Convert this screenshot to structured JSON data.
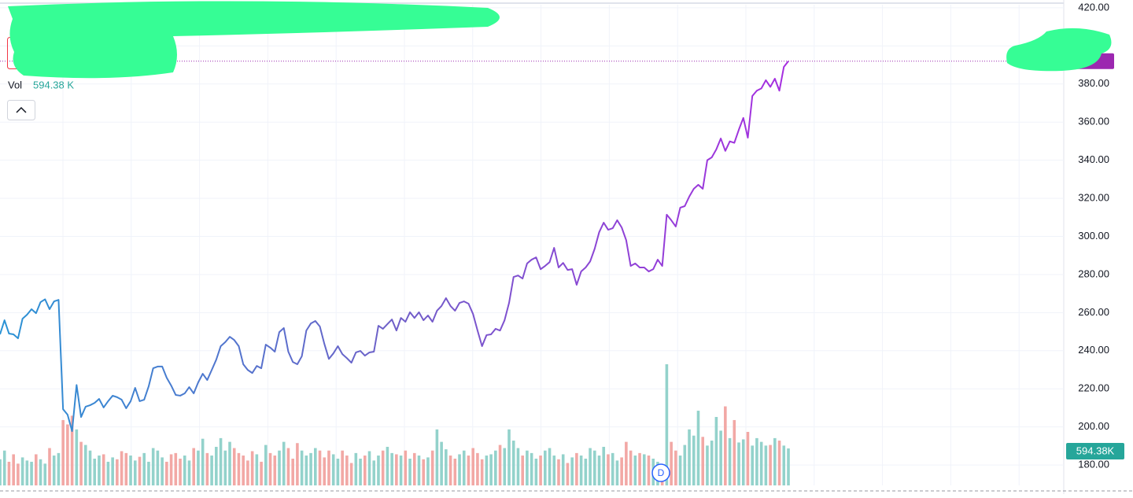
{
  "chart_data": {
    "type": "line",
    "ylim": [
      169.3,
      424.1
    ],
    "yticks": [
      {
        "value": 180,
        "label": "180.00"
      },
      {
        "value": 200,
        "label": "200.00"
      },
      {
        "value": 220,
        "label": "220.00"
      },
      {
        "value": 240,
        "label": "240.00"
      },
      {
        "value": 260,
        "label": "260.00"
      },
      {
        "value": 280,
        "label": "280.00"
      },
      {
        "value": 300,
        "label": "300.00"
      },
      {
        "value": 320,
        "label": "320.00"
      },
      {
        "value": 340,
        "label": "340.00"
      },
      {
        "value": 360,
        "label": "360.00"
      },
      {
        "value": 380,
        "label": "380.00"
      },
      {
        "value": 400,
        "label": "400.00"
      },
      {
        "value": 420,
        "label": "420.00"
      }
    ],
    "grid": true,
    "line_colors": [
      "#2a93d5",
      "#6f5fc8",
      "#a62ee0"
    ],
    "last_price_color": "#9c27b0",
    "values": [
      248.6,
      256,
      249,
      248.6,
      246.5,
      256.8,
      258.9,
      261.8,
      259.7,
      265.5,
      267,
      261.8,
      265.9,
      266.7,
      209.3,
      206.4,
      197.8,
      222,
      205.2,
      210.6,
      211.4,
      212.6,
      214.7,
      210.2,
      213.5,
      216.4,
      215.6,
      214.3,
      209.8,
      213.5,
      220.5,
      213.5,
      214.3,
      221.3,
      230.8,
      231.7,
      231.7,
      225.8,
      221.7,
      216.8,
      216.4,
      217.6,
      220.9,
      217.6,
      223.4,
      227.9,
      224.6,
      229.9,
      235.3,
      242.4,
      244.5,
      247.3,
      245.6,
      242.4,
      232.9,
      229.9,
      228.3,
      232,
      230.8,
      243.2,
      241.6,
      239.5,
      249.8,
      251.9,
      239.5,
      234.1,
      232.9,
      237.1,
      250.6,
      254.3,
      255.6,
      252.7,
      243.6,
      235.7,
      238.6,
      242.4,
      238.2,
      236.1,
      233.7,
      239.1,
      239.9,
      237.4,
      239.1,
      239.5,
      253.1,
      251.5,
      254,
      256.4,
      250.6,
      257.2,
      255.2,
      260.2,
      257.2,
      260.2,
      256,
      258.5,
      255.2,
      261,
      263.5,
      267.6,
      263.5,
      261,
      265.1,
      265.9,
      264.7,
      259.3,
      250.6,
      242.4,
      248.2,
      248.6,
      251.5,
      250.6,
      256,
      265.1,
      278.7,
      279.5,
      277.9,
      285.8,
      287.8,
      289,
      282.8,
      284.5,
      286.5,
      294,
      283.7,
      286.1,
      282.4,
      282.8,
      274.6,
      281.6,
      283.7,
      286.9,
      293.5,
      302.2,
      307.2,
      303.5,
      304.3,
      308.5,
      304.7,
      298,
      284.5,
      285.8,
      283.7,
      283.7,
      281.6,
      282.8,
      287.8,
      284.5,
      311.4,
      308.5,
      305.2,
      315.1,
      315.9,
      320.9,
      325,
      327.1,
      325,
      340,
      341.5,
      345.7,
      351.4,
      344.9,
      349.9,
      349.1,
      356,
      362.2,
      351.8,
      373.7,
      376.5,
      377.7,
      382,
      378.5,
      382.8,
      376.5,
      389,
      392
    ],
    "volume": {
      "label": "Vol",
      "ylim": [
        0,
        7800
      ],
      "up_color": "#93d2cb",
      "down_color": "#f2a8a5",
      "values": [
        420,
        560,
        380,
        500,
        350,
        450,
        400,
        380,
        500,
        420,
        350,
        600,
        480,
        520,
        1050,
        980,
        1120,
        900,
        700,
        650,
        560,
        430,
        480,
        500,
        380,
        450,
        420,
        550,
        520,
        480,
        400,
        460,
        520,
        380,
        600,
        560,
        450,
        380,
        500,
        520,
        430,
        480,
        400,
        600,
        560,
        750,
        520,
        480,
        620,
        760,
        560,
        700,
        600,
        520,
        480,
        400,
        550,
        500,
        380,
        650,
        520,
        480,
        560,
        700,
        600,
        430,
        680,
        560,
        480,
        520,
        600,
        560,
        450,
        560,
        500,
        430,
        560,
        480,
        360,
        520,
        430,
        480,
        550,
        400,
        480,
        560,
        620,
        520,
        500,
        480,
        560,
        430,
        520,
        480,
        420,
        450,
        560,
        900,
        700,
        580,
        480,
        430,
        500,
        560,
        480,
        600,
        520,
        420,
        480,
        500,
        560,
        650,
        600,
        900,
        720,
        600,
        480,
        560,
        520,
        430,
        480,
        560,
        600,
        480,
        420,
        500,
        360,
        450,
        520,
        480,
        430,
        600,
        560,
        480,
        620,
        500,
        520,
        400,
        450,
        700,
        560,
        480,
        520,
        500,
        480,
        430,
        380,
        300,
        1947,
        700,
        560,
        480,
        650,
        900,
        800,
        1200,
        780,
        640,
        720,
        1100,
        880,
        1270,
        760,
        1050,
        690,
        740,
        860,
        640,
        760,
        700,
        640,
        650,
        760,
        720,
        640,
        594.38
      ],
      "last_labels": [
        "594.38 K",
        "594.38K"
      ],
      "badge_color": "#26a69a"
    },
    "event_marker": "D"
  }
}
